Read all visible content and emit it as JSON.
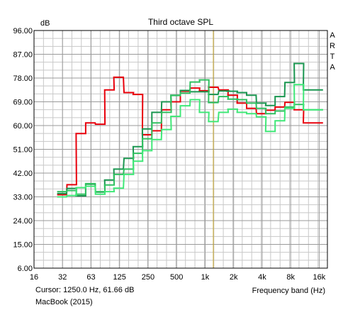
{
  "chart_data": {
    "type": "line",
    "title": "Third octave SPL",
    "ylabel": "dB",
    "xlabel": "Frequency band (Hz)",
    "watermark": "ARTA",
    "ylim": [
      6,
      96
    ],
    "xscale": "log",
    "xlim": [
      16,
      20000
    ],
    "yticks": [
      "96.00",
      "87.00",
      "78.00",
      "69.00",
      "60.00",
      "51.00",
      "42.00",
      "33.00",
      "24.00",
      "15.00",
      "6.00"
    ],
    "xticks": [
      "16",
      "32",
      "63",
      "125",
      "250",
      "500",
      "1k",
      "2k",
      "4k",
      "8k",
      "16k"
    ],
    "cursor_x": 1250,
    "grid": true,
    "bands": [
      31.5,
      40,
      50,
      63,
      80,
      100,
      125,
      160,
      200,
      250,
      315,
      400,
      500,
      630,
      800,
      1000,
      1250,
      1600,
      2000,
      2500,
      3150,
      4000,
      5000,
      6300,
      8000,
      10000,
      12500,
      16000
    ],
    "series": [
      {
        "color": "#e8000b",
        "values": [
          33.8,
          37.6,
          57.0,
          61.0,
          60.5,
          73.5,
          78.3,
          72.5,
          71.8,
          56.5,
          58.0,
          66.0,
          69.0,
          73.0,
          74.2,
          73.2,
          74.5,
          73.5,
          71.5,
          68.5,
          66.5,
          64.5,
          65.8,
          67.0,
          68.8,
          66.0,
          61.0,
          61.0
        ]
      },
      {
        "color": "#1a9650",
        "values": [
          34.3,
          36.2,
          33.4,
          37.8,
          34.8,
          39.4,
          43.5,
          47.6,
          52.0,
          58.7,
          65.0,
          69.0,
          71.5,
          73.3,
          72.8,
          72.8,
          71.8,
          73.1,
          73.0,
          72.5,
          71.5,
          68.5,
          67.6,
          71.0,
          76.3,
          83.5,
          73.5,
          73.5
        ]
      },
      {
        "color": "#30c060",
        "values": [
          35.0,
          35.4,
          34.0,
          38.0,
          35.0,
          37.5,
          41.5,
          43.5,
          49.5,
          55.0,
          61.0,
          65.0,
          71.4,
          72.3,
          76.5,
          77.3,
          68.7,
          71.0,
          70.0,
          69.8,
          68.5,
          66.5,
          64.5,
          65.5,
          67.0,
          68.0,
          66.0,
          66.0
        ]
      },
      {
        "color": "#40e878",
        "values": [
          33.0,
          33.5,
          36.5,
          37.0,
          34.0,
          35.0,
          36.3,
          41.5,
          46.5,
          50.5,
          54.7,
          58.5,
          63.5,
          67.5,
          69.8,
          65.0,
          61.5,
          65.0,
          66.2,
          65.0,
          64.5,
          63.3,
          57.8,
          61.8,
          66.5,
          75.5,
          66.0,
          66.0
        ]
      }
    ]
  },
  "footer": {
    "cursor_label": "Cursor:",
    "cursor_value": "1250.0 Hz, 61.66 dB",
    "device": "MacBook (2015)"
  }
}
